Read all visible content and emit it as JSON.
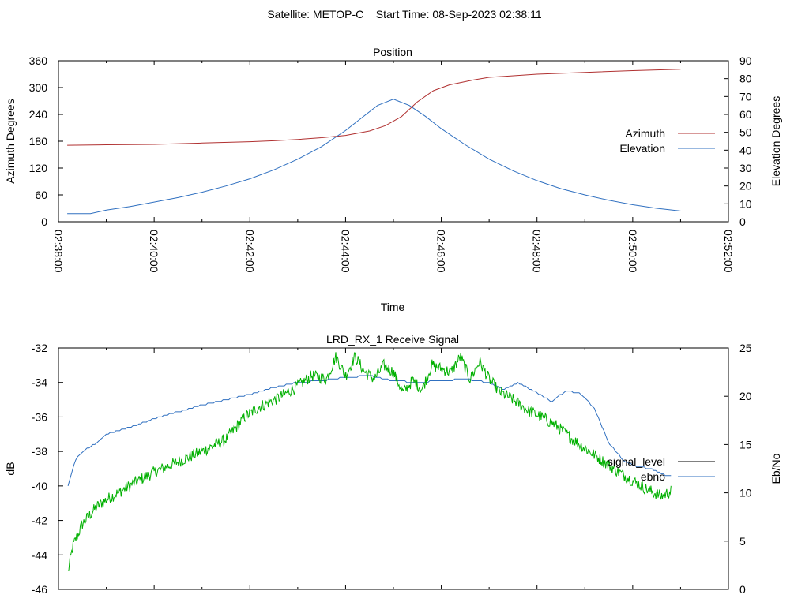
{
  "header": {
    "title": "Satellite: METOP-C    Start Time: 08-Sep-2023 02:38:11"
  },
  "colors": {
    "azimuth": "#b03030",
    "elevation": "#3070c0",
    "signal_level": "#000000",
    "ebno_blue": "#3070c0",
    "ebno_green": "#00b000"
  },
  "chart_data": [
    {
      "type": "line",
      "title": "Position",
      "xlabel": "Time",
      "ylabel": "Azimuth Degrees",
      "y2label": "Elevation Degrees",
      "x_ticks": [
        "02:38:00",
        "02:40:00",
        "02:42:00",
        "02:44:00",
        "02:46:00",
        "02:48:00",
        "02:50:00",
        "02:52:00"
      ],
      "xlim_minutes": [
        0,
        14
      ],
      "ylim": [
        0,
        360
      ],
      "y_ticks": [
        0,
        60,
        120,
        180,
        240,
        300,
        360
      ],
      "y2lim": [
        0,
        90
      ],
      "y2_ticks": [
        0,
        10,
        20,
        30,
        40,
        50,
        60,
        70,
        80,
        90
      ],
      "legend_position": "right",
      "series": [
        {
          "name": "Azimuth",
          "axis": "y",
          "x": [
            "02:38:11",
            "02:39:00",
            "02:40:00",
            "02:41:00",
            "02:42:00",
            "02:42:30",
            "02:43:00",
            "02:43:30",
            "02:44:00",
            "02:44:30",
            "02:44:50",
            "02:45:10",
            "02:45:30",
            "02:45:50",
            "02:46:10",
            "02:46:40",
            "02:47:00",
            "02:48:00",
            "02:49:00",
            "02:50:00",
            "02:51:00"
          ],
          "values": [
            171,
            172,
            173,
            176,
            179,
            181,
            184,
            188,
            193,
            203,
            215,
            235,
            268,
            293,
            306,
            317,
            323,
            330,
            334,
            338,
            341
          ]
        },
        {
          "name": "Elevation",
          "axis": "y2",
          "x": [
            "02:38:11",
            "02:38:40",
            "02:39:00",
            "02:39:30",
            "02:40:00",
            "02:40:30",
            "02:41:00",
            "02:41:30",
            "02:42:00",
            "02:42:30",
            "02:43:00",
            "02:43:30",
            "02:44:00",
            "02:44:20",
            "02:44:40",
            "02:45:00",
            "02:45:20",
            "02:45:40",
            "02:46:00",
            "02:46:30",
            "02:47:00",
            "02:47:30",
            "02:48:00",
            "02:48:30",
            "02:49:00",
            "02:49:30",
            "02:50:00",
            "02:50:30",
            "02:51:00"
          ],
          "values": [
            4.5,
            4.5,
            6.5,
            8.5,
            11,
            13.5,
            16.5,
            20,
            24,
            29,
            35,
            42,
            51,
            58,
            65,
            68.5,
            65,
            59,
            52,
            43,
            35,
            28.5,
            23,
            18.5,
            15,
            12,
            9.5,
            7.5,
            6
          ]
        }
      ]
    },
    {
      "type": "line",
      "title": "LRD_RX_1 Receive Signal",
      "xlabel": "",
      "ylabel": "dB",
      "y2label": "Eb/No",
      "xlim_minutes": [
        0,
        14
      ],
      "ylim": [
        -46,
        -32
      ],
      "y_ticks": [
        -46,
        -44,
        -42,
        -40,
        -38,
        -36,
        -34,
        -32
      ],
      "y2lim": [
        0,
        25
      ],
      "y2_ticks": [
        0,
        5,
        10,
        15,
        20,
        25
      ],
      "legend_position": "right",
      "series": [
        {
          "name": "ebno",
          "axis": "y",
          "x_minutes": [
            0.2,
            0.35,
            0.5,
            0.8,
            1.0,
            1.5,
            2.0,
            2.5,
            3.0,
            3.5,
            4.0,
            4.5,
            5.0,
            5.5,
            6.0,
            6.5,
            7.0,
            7.5,
            8.0,
            8.5,
            9.0,
            9.3,
            9.6,
            10.0,
            10.3,
            10.6,
            10.9,
            11.2,
            11.5,
            11.8,
            12.1,
            12.4,
            12.7,
            12.8
          ],
          "values": [
            -40.0,
            -38.5,
            -38.0,
            -37.5,
            -37.0,
            -36.6,
            -36.1,
            -35.7,
            -35.3,
            -35.0,
            -34.7,
            -34.3,
            -34.0,
            -33.9,
            -33.7,
            -33.6,
            -33.9,
            -34.0,
            -33.9,
            -33.8,
            -34.0,
            -34.4,
            -34.0,
            -34.6,
            -35.1,
            -34.5,
            -34.6,
            -35.5,
            -37.5,
            -38.5,
            -38.9,
            -39.0,
            -39.4,
            -39.4
          ]
        },
        {
          "name": "",
          "axis": "y",
          "x_minutes": [
            0.2,
            0.3,
            0.5,
            0.8,
            1.0,
            1.3,
            1.6,
            2.0,
            2.5,
            3.0,
            3.5,
            3.9,
            4.2,
            4.6,
            5.0,
            5.3,
            5.6,
            5.8,
            6.0,
            6.2,
            6.4,
            6.6,
            6.8,
            7.0,
            7.2,
            7.4,
            7.6,
            7.8,
            8.0,
            8.2,
            8.4,
            8.6,
            8.8,
            9.0,
            9.2,
            9.5,
            9.8,
            10.1,
            10.4,
            10.7,
            11.0,
            11.3,
            11.6,
            12.0,
            12.3,
            12.6,
            12.8
          ],
          "values": [
            -45.0,
            -43.5,
            -42.2,
            -41.2,
            -40.8,
            -40.3,
            -39.8,
            -39.2,
            -38.6,
            -38.0,
            -37.3,
            -36.0,
            -35.4,
            -34.9,
            -34.2,
            -33.6,
            -33.8,
            -32.5,
            -33.6,
            -32.5,
            -33.4,
            -33.8,
            -33.0,
            -33.4,
            -34.6,
            -33.9,
            -34.4,
            -33.0,
            -33.2,
            -33.4,
            -32.5,
            -33.8,
            -32.8,
            -33.8,
            -34.5,
            -35.0,
            -35.6,
            -36.0,
            -36.5,
            -37.2,
            -37.8,
            -38.4,
            -39.0,
            -39.7,
            -40.2,
            -40.6,
            -40.3
          ]
        },
        {
          "name": "signal_level",
          "axis": "y",
          "x_minutes": [],
          "values": []
        }
      ]
    }
  ]
}
